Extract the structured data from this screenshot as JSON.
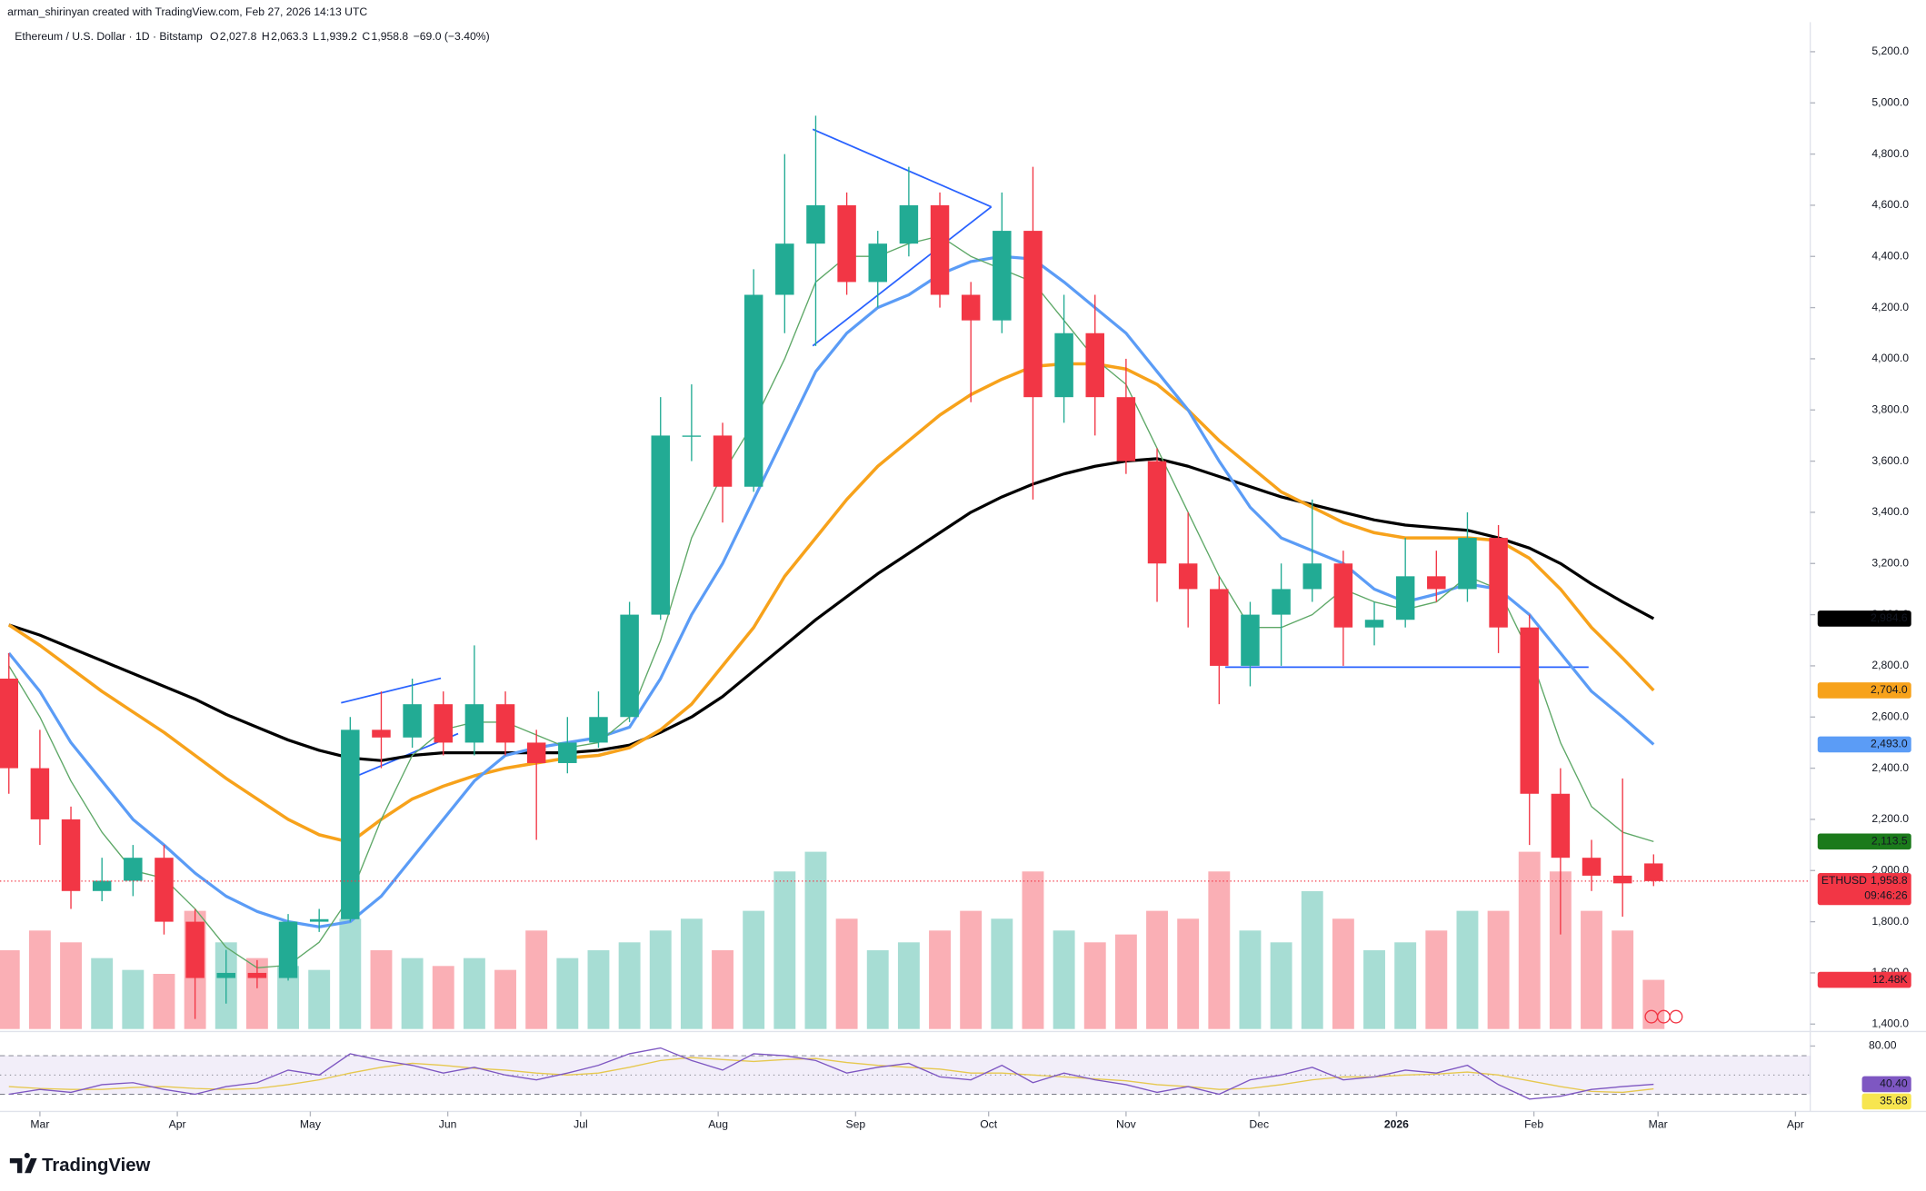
{
  "header": {
    "credit": "arman_shirinyan created with TradingView.com, Feb 27, 2026 14:13 UTC",
    "symbol": "Ethereum / U.S. Dollar · 1D · Bitstamp",
    "ohlc": [
      {
        "key": "O",
        "value": 2027.8,
        "label": "2,027.8"
      },
      {
        "key": "H",
        "value": 2063.3,
        "label": "2,063.3"
      },
      {
        "key": "L",
        "value": 1939.2,
        "label": "1,939.2"
      },
      {
        "key": "C",
        "value": 1958.8,
        "label": "1,958.8"
      }
    ],
    "change": "−69.0 (−3.40%)"
  },
  "footer": {
    "brand": "TradingView"
  },
  "chart_data": {
    "type": "candlestick",
    "x": [
      2,
      9,
      16,
      23,
      30,
      37,
      44,
      51,
      58,
      65,
      72,
      79,
      86,
      93,
      100,
      107,
      114,
      121,
      128,
      135,
      142,
      149,
      156,
      163,
      170,
      177,
      184,
      191,
      198,
      205,
      212,
      219,
      226,
      233,
      240,
      247,
      254,
      261,
      268,
      275,
      282,
      289,
      296,
      303,
      310,
      317,
      324,
      331,
      338,
      345,
      352,
      359,
      366,
      373
    ],
    "open": [
      2750,
      2400,
      2200,
      1920,
      1960,
      2050,
      1800,
      1580,
      1600,
      1580,
      1800,
      1810,
      2550,
      2520,
      2650,
      2500,
      2650,
      2500,
      2420,
      2500,
      2600,
      3000,
      3700,
      3700,
      3500,
      4250,
      4450,
      4600,
      4300,
      4450,
      4600,
      4250,
      4150,
      4500,
      3850,
      4100,
      3850,
      3600,
      3200,
      3100,
      2800,
      3000,
      3100,
      3200,
      2950,
      2980,
      3150,
      3100,
      3300,
      2950,
      2300,
      2050,
      1980,
      2027.8
    ],
    "high": [
      2850,
      2550,
      2250,
      2050,
      2100,
      2100,
      1850,
      1690,
      1650,
      1830,
      1850,
      2600,
      2700,
      2750,
      2700,
      2880,
      2700,
      2550,
      2600,
      2700,
      3050,
      3850,
      3900,
      3750,
      4350,
      4800,
      4950,
      4650,
      4500,
      4750,
      4650,
      4300,
      4650,
      4750,
      4250,
      4250,
      4000,
      3650,
      3400,
      3150,
      3050,
      3200,
      3450,
      3250,
      3050,
      3300,
      3250,
      3400,
      3350,
      3000,
      2400,
      2120,
      2360,
      2063.3
    ],
    "low": [
      2300,
      2100,
      1850,
      1880,
      1900,
      1750,
      1420,
      1480,
      1540,
      1570,
      1760,
      1800,
      2400,
      2480,
      2450,
      2450,
      2450,
      2120,
      2380,
      2480,
      2580,
      2980,
      3600,
      3360,
      3480,
      4100,
      4050,
      4250,
      4200,
      4400,
      4200,
      3830,
      4100,
      3450,
      3750,
      3700,
      3550,
      3050,
      2950,
      2650,
      2720,
      2800,
      3050,
      2800,
      2880,
      2950,
      3050,
      3050,
      2850,
      2100,
      1750,
      1920,
      1820,
      1939.2
    ],
    "close": [
      2400,
      2200,
      1920,
      1960,
      2050,
      1800,
      1580,
      1600,
      1580,
      1800,
      1810,
      2550,
      2520,
      2650,
      2500,
      2650,
      2500,
      2420,
      2500,
      2600,
      3000,
      3700,
      3700,
      3500,
      4250,
      4450,
      4600,
      4300,
      4450,
      4600,
      4250,
      4150,
      4500,
      3850,
      4100,
      3850,
      3600,
      3200,
      3100,
      2800,
      3000,
      3100,
      3200,
      2950,
      2980,
      3150,
      3100,
      3300,
      2950,
      2300,
      2050,
      1980,
      1950,
      1958.8
    ],
    "up_color": "#22ab94",
    "down_color": "#f23645",
    "xlim": [
      0,
      408
    ],
    "xticks": [
      {
        "value": 9,
        "label": "Mar"
      },
      {
        "value": 40,
        "label": "Apr"
      },
      {
        "value": 70,
        "label": "May"
      },
      {
        "value": 101,
        "label": "Jun"
      },
      {
        "value": 131,
        "label": "Jul"
      },
      {
        "value": 162,
        "label": "Aug"
      },
      {
        "value": 193,
        "label": "Sep"
      },
      {
        "value": 223,
        "label": "Oct"
      },
      {
        "value": 254,
        "label": "Nov"
      },
      {
        "value": 284,
        "label": "Dec"
      },
      {
        "value": 315,
        "label": "2026"
      },
      {
        "value": 346,
        "label": "Feb"
      },
      {
        "value": 374,
        "label": "Mar"
      },
      {
        "value": 405,
        "label": "Apr"
      }
    ],
    "ylim": [
      1400,
      5200
    ],
    "yticks": [
      {
        "value": 1400,
        "label": "1,400.0"
      },
      {
        "value": 1600,
        "label": "1,600.0"
      },
      {
        "value": 1800,
        "label": "1,800.0"
      },
      {
        "value": 2000,
        "label": "2,000.0"
      },
      {
        "value": 2200,
        "label": "2,200.0"
      },
      {
        "value": 2400,
        "label": "2,400.0"
      },
      {
        "value": 2600,
        "label": "2,600.0"
      },
      {
        "value": 2800,
        "label": "2,800.0"
      },
      {
        "value": 3000,
        "label": "3,000.0"
      },
      {
        "value": 3200,
        "label": "3,200.0"
      },
      {
        "value": 3400,
        "label": "3,400.0"
      },
      {
        "value": 3600,
        "label": "3,600.0"
      },
      {
        "value": 3800,
        "label": "3,800.0"
      },
      {
        "value": 4000,
        "label": "4,000.0"
      },
      {
        "value": 4200,
        "label": "4,200.0"
      },
      {
        "value": 4400,
        "label": "4,400.0"
      },
      {
        "value": 4600,
        "label": "4,600.0"
      },
      {
        "value": 4800,
        "label": "4,800.0"
      },
      {
        "value": 5000,
        "label": "5,000.0"
      },
      {
        "value": 5200,
        "label": "5,200.0"
      }
    ],
    "series": [
      {
        "color": "#5ea867",
        "width": 1,
        "values": [
          2800,
          2600,
          2350,
          2150,
          2000,
          1970,
          1850,
          1700,
          1620,
          1630,
          1720,
          1900,
          2200,
          2450,
          2550,
          2580,
          2580,
          2530,
          2480,
          2500,
          2600,
          2900,
          3300,
          3550,
          3750,
          4000,
          4300,
          4400,
          4400,
          4450,
          4480,
          4400,
          4350,
          4300,
          4150,
          4000,
          3900,
          3650,
          3400,
          3150,
          2950,
          2950,
          3000,
          3100,
          3050,
          3020,
          3050,
          3150,
          3100,
          2850,
          2500,
          2250,
          2150,
          2113.5
        ]
      },
      {
        "color": "#5b9cf6",
        "width": 2.4,
        "values": [
          2850,
          2700,
          2500,
          2350,
          2200,
          2100,
          1990,
          1900,
          1840,
          1800,
          1780,
          1800,
          1900,
          2050,
          2200,
          2350,
          2450,
          2480,
          2500,
          2520,
          2560,
          2750,
          3000,
          3200,
          3450,
          3700,
          3950,
          4100,
          4200,
          4250,
          4330,
          4380,
          4400,
          4390,
          4300,
          4200,
          4100,
          3950,
          3800,
          3600,
          3420,
          3300,
          3250,
          3200,
          3100,
          3050,
          3080,
          3120,
          3100,
          3000,
          2850,
          2700,
          2600,
          2493
        ]
      },
      {
        "color": "#f7a21b",
        "width": 2.6,
        "values": [
          2960,
          2880,
          2790,
          2700,
          2620,
          2540,
          2450,
          2360,
          2280,
          2200,
          2140,
          2110,
          2200,
          2280,
          2330,
          2370,
          2400,
          2420,
          2440,
          2450,
          2480,
          2550,
          2650,
          2800,
          2950,
          3150,
          3300,
          3450,
          3580,
          3680,
          3780,
          3860,
          3920,
          3970,
          3980,
          3980,
          3960,
          3900,
          3800,
          3680,
          3580,
          3480,
          3420,
          3360,
          3320,
          3300,
          3300,
          3300,
          3290,
          3220,
          3100,
          2950,
          2830,
          2704
        ]
      },
      {
        "color": "#000000",
        "width": 2.4,
        "values": [
          2960,
          2920,
          2870,
          2820,
          2770,
          2720,
          2670,
          2610,
          2560,
          2510,
          2470,
          2440,
          2430,
          2450,
          2460,
          2460,
          2460,
          2460,
          2460,
          2470,
          2490,
          2540,
          2600,
          2680,
          2780,
          2880,
          2980,
          3070,
          3160,
          3240,
          3320,
          3400,
          3460,
          3510,
          3550,
          3580,
          3600,
          3610,
          3580,
          3540,
          3500,
          3460,
          3430,
          3400,
          3370,
          3350,
          3340,
          3330,
          3300,
          3260,
          3200,
          3120,
          3050,
          2984.6
        ]
      }
    ],
    "price_tags": [
      {
        "value": 2984.6,
        "label": "2,984.6",
        "color": "#000000",
        "text_color": "#ffffff"
      },
      {
        "value": 2704.0,
        "label": "2,704.0",
        "color": "#f7a21b",
        "text_color": "#131722"
      },
      {
        "value": 2493.0,
        "label": "2,493.0",
        "color": "#5b9cf6",
        "text_color": "#131722"
      },
      {
        "value": 2113.5,
        "label": "2,113.5",
        "color": "#1b7a1b",
        "text_color": "#ffffff"
      }
    ],
    "last_price": {
      "name": "ETHUSD",
      "value": 1958.8,
      "label": "1,958.8",
      "countdown": "09:46:26",
      "color": "#f23645"
    },
    "volume": {
      "ylim": [
        0,
        50
      ],
      "values": [
        20,
        25,
        22,
        18,
        15,
        14,
        30,
        22,
        18,
        16,
        15,
        28,
        20,
        18,
        16,
        18,
        15,
        25,
        18,
        20,
        22,
        25,
        28,
        20,
        30,
        40,
        45,
        28,
        20,
        22,
        25,
        30,
        28,
        40,
        25,
        22,
        24,
        30,
        28,
        40,
        25,
        22,
        35,
        28,
        20,
        22,
        25,
        30,
        30,
        45,
        40,
        30,
        25,
        12.48
      ],
      "tag": {
        "value": 12.48,
        "label": "12.48K",
        "color": "#f23645"
      }
    },
    "rsi": {
      "ylim": [
        16,
        90
      ],
      "color": "#7e57c2",
      "ma_color": "#e6c84f",
      "yticks": [
        {
          "value": 80,
          "label": "80.00"
        }
      ],
      "levels": [
        70,
        50,
        30
      ],
      "values": [
        30,
        35,
        32,
        40,
        42,
        35,
        30,
        38,
        42,
        55,
        50,
        72,
        65,
        60,
        52,
        58,
        50,
        45,
        52,
        60,
        72,
        78,
        65,
        55,
        72,
        70,
        65,
        52,
        58,
        62,
        48,
        45,
        60,
        42,
        52,
        45,
        40,
        32,
        38,
        30,
        45,
        50,
        58,
        45,
        48,
        55,
        52,
        60,
        40,
        25,
        28,
        35,
        38,
        40.4
      ],
      "ma": [
        38,
        36,
        35,
        35,
        37,
        38,
        36,
        35,
        36,
        40,
        45,
        52,
        58,
        62,
        60,
        57,
        55,
        52,
        50,
        52,
        58,
        65,
        68,
        66,
        64,
        66,
        67,
        63,
        60,
        58,
        56,
        52,
        52,
        50,
        48,
        46,
        44,
        40,
        38,
        35,
        36,
        40,
        45,
        48,
        48,
        50,
        51,
        53,
        50,
        44,
        38,
        33,
        32,
        35.68
      ],
      "tags": [
        {
          "value": 40.4,
          "label": "40.40",
          "color": "#7e57c2",
          "text_color": "#ffffff"
        },
        {
          "value": 35.68,
          "label": "35.68",
          "color": "#f7e54f",
          "text_color": "#131722"
        }
      ]
    }
  }
}
